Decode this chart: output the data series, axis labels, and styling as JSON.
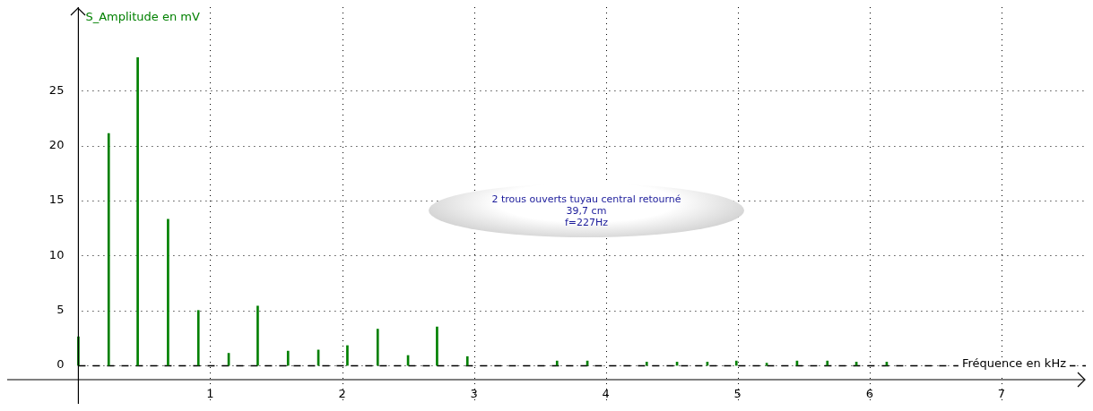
{
  "chart_data": {
    "type": "bar",
    "xlabel": "Fréquence en kHz",
    "ylabel": "S_Amplitude en mV",
    "x": [
      0,
      0.23,
      0.45,
      0.68,
      0.91,
      1.14,
      1.36,
      1.59,
      1.82,
      2.04,
      2.27,
      2.5,
      2.72,
      2.95,
      3.63,
      3.86,
      4.31,
      4.54,
      4.77,
      4.99,
      5.22,
      5.45,
      5.68,
      5.9,
      6.13
    ],
    "series": [
      {
        "color": "#008000",
        "values": [
          2.6,
          21.1,
          28,
          13.3,
          5,
          1.1,
          5.4,
          1.3,
          1.4,
          1.8,
          3.3,
          0.9,
          3.5,
          0.8,
          0.4,
          0.4,
          0.3,
          0.3,
          0.3,
          0.4,
          0.2,
          0.4,
          0.4,
          0.3,
          0.3
        ]
      }
    ],
    "xlim": [
      -0.54,
      7.64
    ],
    "ylim": [
      -3.5,
      32.6
    ],
    "xticks": [
      1,
      2,
      3,
      4,
      5,
      6,
      7
    ],
    "yticks": [
      0,
      5,
      10,
      15,
      20,
      25
    ],
    "grid": true,
    "legend": false,
    "ref_lines": [
      {
        "axis": "y",
        "value": 0,
        "color": "#000000",
        "line_style": "dashed"
      }
    ],
    "annotations": [
      "2 trous ouverts tuyau central retourné\n39,7 cm\nf=227Hz"
    ]
  }
}
